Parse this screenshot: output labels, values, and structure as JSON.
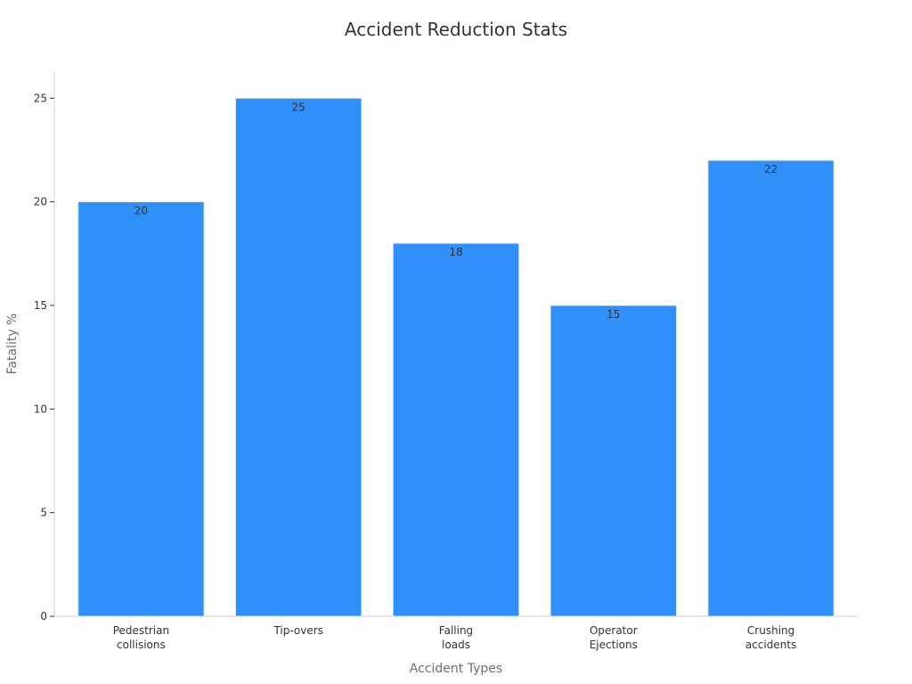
{
  "chart_data": {
    "type": "bar",
    "title": "Accident Reduction Stats",
    "xlabel": "Accident Types",
    "ylabel": "Fatality %",
    "categories": [
      [
        "Pedestrian",
        "collisions"
      ],
      [
        "Tip-overs"
      ],
      [
        "Falling",
        "loads"
      ],
      [
        "Operator",
        "Ejections"
      ],
      [
        "Crushing",
        "accidents"
      ]
    ],
    "values": [
      20,
      25,
      18,
      15,
      22
    ],
    "ylim": [
      0,
      26.3
    ],
    "yticks": [
      0,
      5,
      10,
      15,
      20,
      25
    ],
    "grid": false,
    "legend": "none",
    "bar_color": "#2e90f8",
    "bar_edge_color": "#e6e6e6",
    "axis_color": "#cccccc",
    "text_color": "#333333",
    "muted_text_color": "#6e6e6e"
  }
}
